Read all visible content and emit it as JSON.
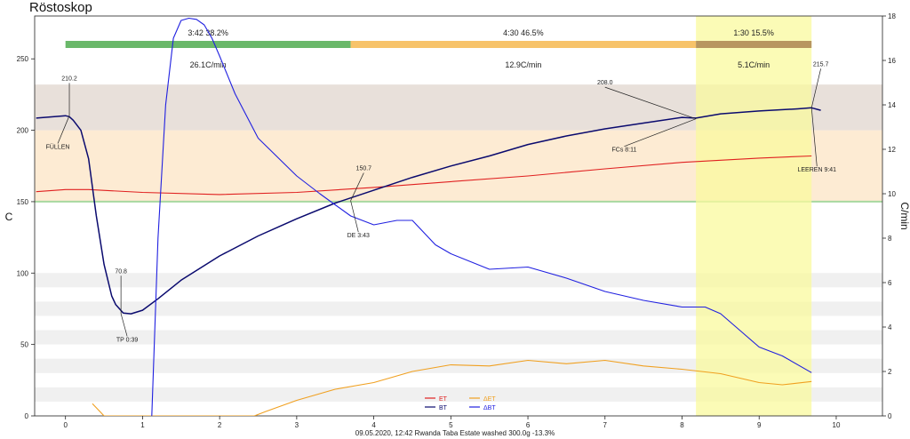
{
  "title": "Röstoskop",
  "footer": "09.05.2020, 12:42   Rwanda Taba Estate washed   300.0g   -13.3%",
  "chart_data": {
    "type": "line",
    "xlabel": "",
    "ylabel": "C",
    "y2label": "C/min",
    "xlim": [
      -0.4,
      10.6
    ],
    "ylim": [
      0,
      280
    ],
    "y2lim": [
      0,
      18
    ],
    "x_ticks": [
      0,
      1,
      2,
      3,
      4,
      5,
      6,
      7,
      8,
      9,
      10
    ],
    "y_ticks": [
      0,
      50,
      100,
      150,
      200,
      250
    ],
    "y2_ticks": [
      0,
      2,
      4,
      6,
      8,
      10,
      12,
      14,
      16,
      18
    ],
    "legend": {
      "placement": "bottom-center",
      "entries": [
        {
          "name": "ET",
          "color": "#e02020"
        },
        {
          "name": "BT",
          "color": "#0a0a6e"
        },
        {
          "name": "ΔET",
          "color": "#f0a020"
        },
        {
          "name": "ΔBT",
          "color": "#2020e0"
        }
      ]
    },
    "phases": [
      {
        "label": "3:42  38.2%",
        "rate": "26.1C/min",
        "x_start": 0,
        "x_end": 3.7,
        "color": "#6ab86a"
      },
      {
        "label": "4:30  46.5%",
        "rate": "12.9C/min",
        "x_start": 3.7,
        "x_end": 8.18,
        "color": "#f7c36a"
      },
      {
        "label": "1:30  15.5%",
        "rate": "5.1C/min",
        "x_start": 8.18,
        "x_end": 9.68,
        "color": "#b89660"
      }
    ],
    "bands": [
      {
        "y_from": 200,
        "y_to": 232,
        "color": "#e8e0da"
      },
      {
        "y_from": 150,
        "y_to": 200,
        "color": "#fdebd3"
      },
      {
        "y_from": 90,
        "y_to": 100,
        "color": "#f0f0f0"
      },
      {
        "y_from": 70,
        "y_to": 80,
        "color": "#f0f0f0"
      },
      {
        "y_from": 50,
        "y_to": 60,
        "color": "#f0f0f0"
      },
      {
        "y_from": 30,
        "y_to": 40,
        "color": "#f0f0f0"
      },
      {
        "y_from": 10,
        "y_to": 20,
        "color": "#f0f0f0"
      }
    ],
    "highlight": {
      "x_from": 8.18,
      "x_to": 9.68,
      "color": "#fafa9e"
    },
    "series": [
      {
        "name": "ET",
        "axis": "left",
        "color": "#e02020",
        "x": [
          -0.38,
          0,
          0.3,
          1,
          2,
          3,
          4,
          5,
          6,
          7,
          8,
          9,
          9.68
        ],
        "y": [
          157,
          158.5,
          158.5,
          156.5,
          155,
          156.5,
          160,
          164,
          168,
          173,
          177.5,
          180.5,
          182
        ]
      },
      {
        "name": "BT",
        "axis": "left",
        "color": "#0a0a6e",
        "x": [
          -0.38,
          0,
          0.05,
          0.1,
          0.2,
          0.3,
          0.4,
          0.5,
          0.6,
          0.65,
          0.75,
          0.85,
          1,
          1.2,
          1.5,
          2,
          2.5,
          3,
          3.5,
          4,
          4.5,
          5,
          5.5,
          6,
          6.5,
          7,
          7.5,
          8,
          8.18,
          8.5,
          9,
          9.5,
          9.68,
          9.8
        ],
        "y": [
          208.5,
          210.2,
          209.5,
          207,
          200,
          180,
          140,
          106,
          84,
          78,
          72,
          71.5,
          74,
          82,
          95,
          112,
          126,
          138,
          149,
          158,
          167,
          175,
          182,
          190,
          196,
          201,
          205,
          209,
          208.5,
          211.5,
          213.5,
          215,
          215.7,
          214
        ]
      },
      {
        "name": "ΔET",
        "axis": "right",
        "color": "#f0a020",
        "x": [
          0.35,
          0.5,
          2.45,
          2.6,
          3,
          3.5,
          4,
          4.5,
          5,
          5.5,
          6,
          6.5,
          7,
          7.5,
          8,
          8.5,
          9,
          9.3,
          9.68
        ],
        "y": [
          0.55,
          0,
          0,
          0.2,
          0.7,
          1.2,
          1.5,
          2.0,
          2.3,
          2.25,
          2.5,
          2.35,
          2.5,
          2.25,
          2.1,
          1.9,
          1.5,
          1.4,
          1.55
        ]
      },
      {
        "name": "ΔBT",
        "axis": "right",
        "color": "#2020e0",
        "x": [
          1.12,
          1.2,
          1.3,
          1.4,
          1.5,
          1.6,
          1.7,
          1.8,
          1.9,
          2.0,
          2.2,
          2.5,
          3.0,
          3.3,
          3.5,
          3.7,
          4.0,
          4.3,
          4.5,
          4.8,
          5.0,
          5.5,
          6.0,
          6.5,
          7.0,
          7.5,
          8.0,
          8.3,
          8.5,
          8.8,
          9.0,
          9.3,
          9.68
        ],
        "y": [
          0,
          8,
          14,
          17,
          17.8,
          17.9,
          17.85,
          17.6,
          17.0,
          16.2,
          14.5,
          12.5,
          10.8,
          10.0,
          9.5,
          9.0,
          8.6,
          8.8,
          8.8,
          7.7,
          7.3,
          6.6,
          6.7,
          6.2,
          5.6,
          5.2,
          4.9,
          4.9,
          4.6,
          3.7,
          3.1,
          2.7,
          1.95
        ]
      }
    ],
    "annotations": [
      {
        "text": "210.2",
        "x": 0.05,
        "y": 210.2,
        "tx": 0.05,
        "ty": 235
      },
      {
        "text": "FÜLLEN",
        "x": 0.05,
        "y": 210.2,
        "tx": -0.1,
        "ty": 187
      },
      {
        "text": "70.8",
        "x": 0.72,
        "y": 71.5,
        "tx": 0.72,
        "ty": 100
      },
      {
        "text": "TP 0:39",
        "x": 0.72,
        "y": 71.5,
        "tx": 0.8,
        "ty": 52
      },
      {
        "text": "150.7",
        "x": 3.7,
        "y": 150.7,
        "tx": 3.87,
        "ty": 172
      },
      {
        "text": "DE 3:43",
        "x": 3.7,
        "y": 150.7,
        "tx": 3.8,
        "ty": 125
      },
      {
        "text": "208.0",
        "x": 8.18,
        "y": 208.0,
        "tx": 7.0,
        "ty": 232
      },
      {
        "text": "FCs 8:11",
        "x": 8.18,
        "y": 208.0,
        "tx": 7.25,
        "ty": 185
      },
      {
        "text": "215.7",
        "x": 9.68,
        "y": 215.7,
        "tx": 9.8,
        "ty": 245
      },
      {
        "text": "LEEREN 9:41",
        "x": 9.68,
        "y": 215.7,
        "tx": 9.75,
        "ty": 171
      }
    ]
  }
}
